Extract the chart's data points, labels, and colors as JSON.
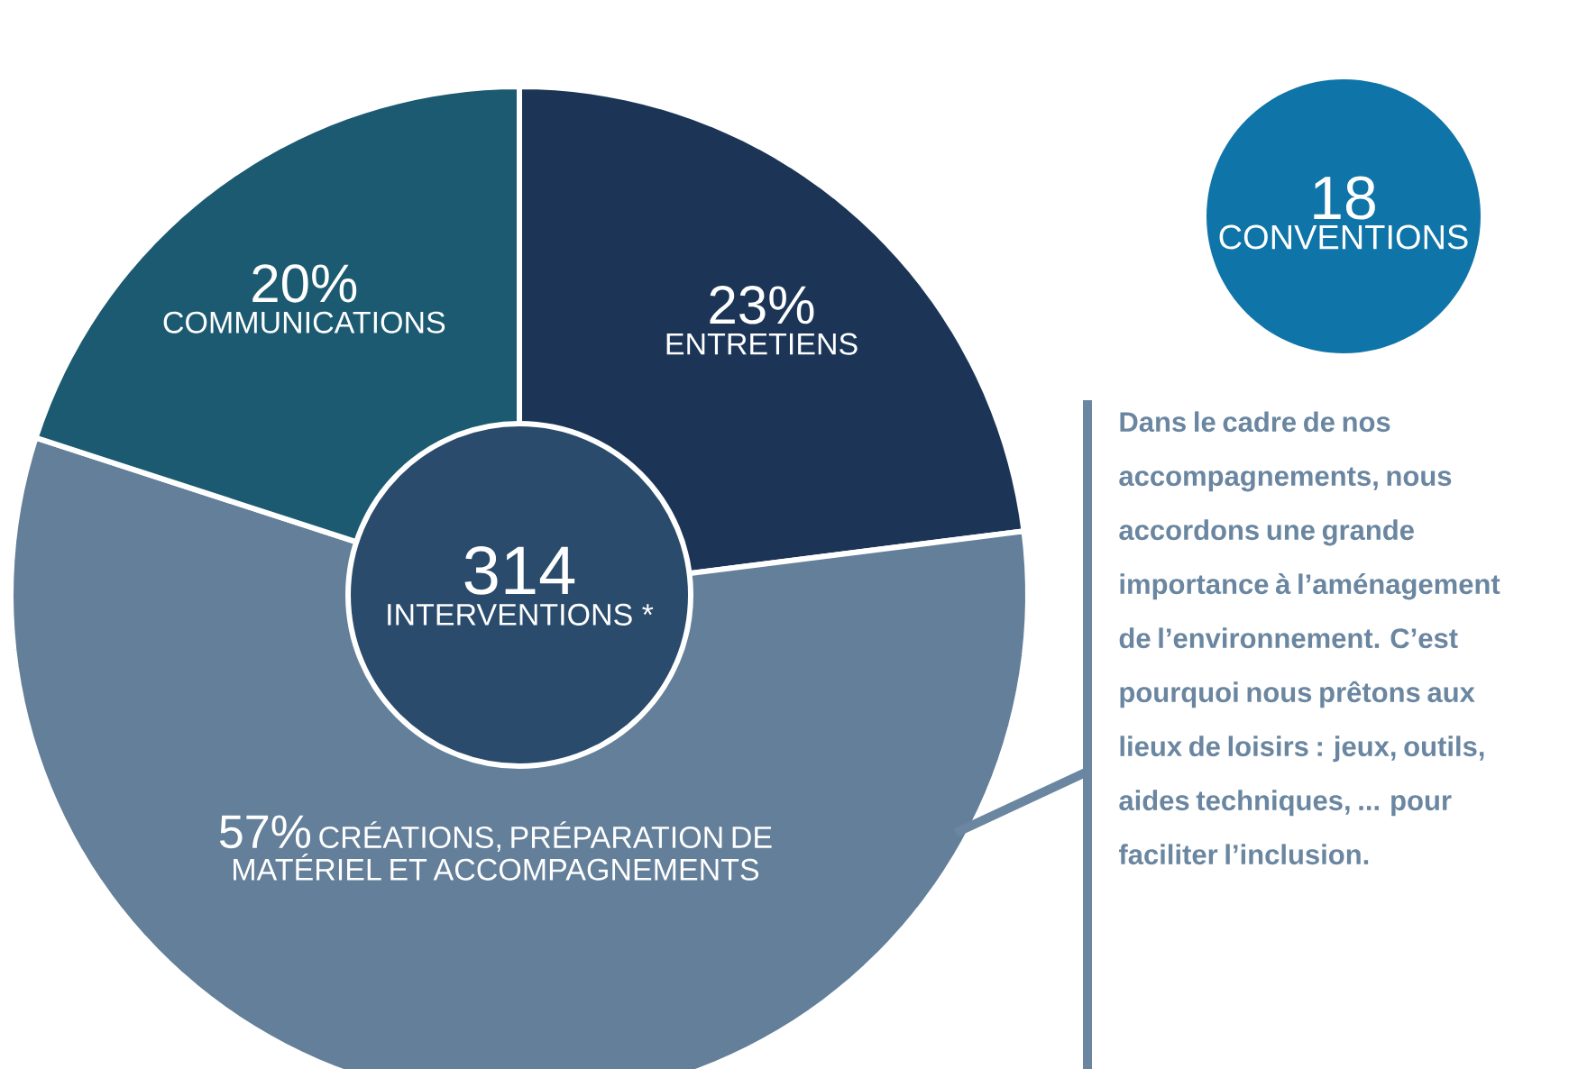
{
  "chart_data": {
    "type": "donut",
    "categories": [
      "ENTRETIENS",
      "CRÉATIONS, PRÉPARATION DE MATÉRIEL ET ACCOMPAGNEMENTS",
      "COMMUNICATIONS"
    ],
    "values": [
      23,
      57,
      20
    ],
    "colors": [
      "#1c3557",
      "#637f99",
      "#1b5a70"
    ],
    "value_labels": [
      "23%",
      "57%",
      "20%"
    ],
    "annotations": [
      "314",
      "INTERVENTIONS *",
      "18",
      "CONVENTIONS",
      "Dans le cadre de nos accompagnements, nous accordons une grande importance à l’aménagement de l’environnement. C’est pourquoi nous prêtons aux lieux de loisirs : jeux, outils, aides techniques, ... pour faciliter l’inclusion."
    ]
  }
}
